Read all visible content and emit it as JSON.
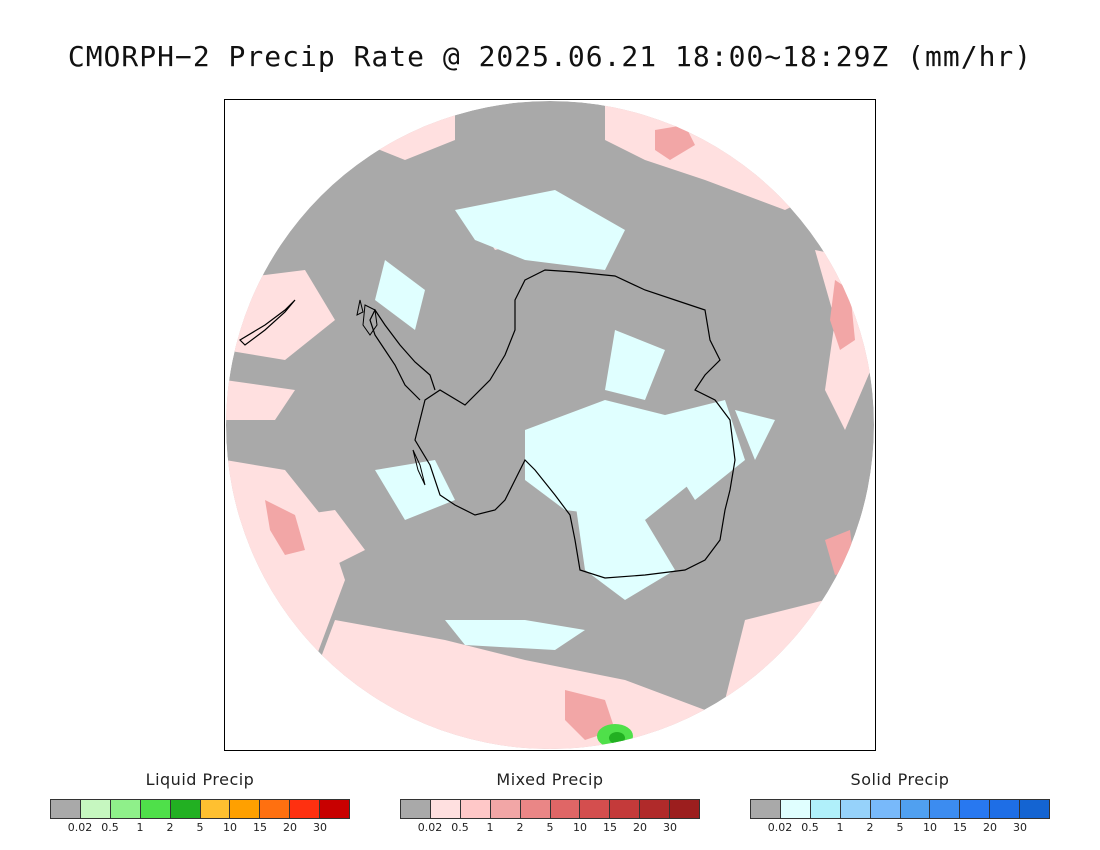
{
  "title": "CMORPH−2 Precip Rate @ 2025.06.21 18:00~18:29Z (mm/hr)",
  "map": {
    "projection": "south-polar-stereographic",
    "region": "Antarctica",
    "background_no_precip_color": "#a9a9a9",
    "coastline_color": "#000000"
  },
  "legends": [
    {
      "title": "Liquid Precip",
      "thresholds": [
        "0.02",
        "0.5",
        "1",
        "2",
        "5",
        "10",
        "15",
        "20",
        "30"
      ],
      "colors": [
        "#a9a9a9",
        "#c6f7c0",
        "#8ff08a",
        "#4fe04a",
        "#22b022",
        "#ffc030",
        "#ffa000",
        "#ff7010",
        "#ff3010",
        "#c80000"
      ]
    },
    {
      "title": "Mixed Precip",
      "thresholds": [
        "0.02",
        "0.5",
        "1",
        "2",
        "5",
        "10",
        "15",
        "20",
        "30"
      ],
      "colors": [
        "#a9a9a9",
        "#ffe0e0",
        "#ffc8c8",
        "#f2a6a6",
        "#ea8686",
        "#e06666",
        "#d44e4e",
        "#c43a3a",
        "#b02a2a",
        "#9c1e1e"
      ]
    },
    {
      "title": "Solid Precip",
      "thresholds": [
        "0.02",
        "0.5",
        "1",
        "2",
        "5",
        "10",
        "15",
        "20",
        "30"
      ],
      "colors": [
        "#a9a9a9",
        "#e0ffff",
        "#b0f0fa",
        "#96d2fa",
        "#78b9fa",
        "#50a0f0",
        "#3c8cf0",
        "#2878f0",
        "#1e6ee6",
        "#1464d2"
      ]
    }
  ]
}
